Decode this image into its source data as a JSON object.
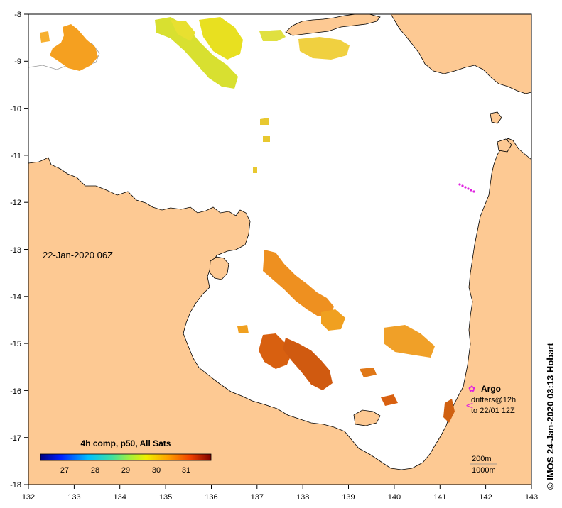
{
  "map": {
    "date_label": "22-Jan-2020 06Z",
    "lon_ticks": [
      "132",
      "133",
      "134",
      "135",
      "136",
      "137",
      "138",
      "139",
      "140",
      "141",
      "142",
      "143"
    ],
    "lat_ticks": [
      "-8",
      "-9",
      "-10",
      "-11",
      "-12",
      "-13",
      "-14",
      "-15",
      "-16",
      "-17",
      "-18"
    ]
  },
  "legend": {
    "title": "4h comp, p50, All Sats",
    "ticks": [
      "27",
      "28",
      "29",
      "30",
      "31"
    ],
    "argo_label": "Argo",
    "drifter_label_1": "drifters@12h",
    "drifter_label_2": "to 22/01 12Z",
    "argo_color": "#e020e0"
  },
  "scale": {
    "contour_200": "200m",
    "contour_1000": "1000m"
  },
  "credit": "© IMOS 24-Jan-2020 03:13 Hobart",
  "colors": {
    "land": "#fdc993",
    "sea": "#ffffff"
  }
}
